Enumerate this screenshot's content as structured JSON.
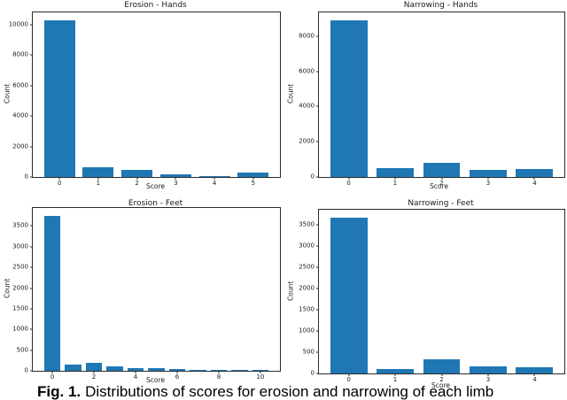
{
  "figure": {
    "caption_prefix": "Fig. 1.",
    "caption_text": "Distributions of scores for erosion and narrowing of each limb"
  },
  "chart_data": [
    {
      "type": "bar",
      "title": "Erosion - Hands",
      "xlabel": "Score",
      "ylabel": "Count",
      "categories": [
        "0",
        "1",
        "2",
        "3",
        "4",
        "5"
      ],
      "values": [
        10300,
        630,
        450,
        190,
        80,
        300
      ],
      "yticks": [
        0,
        2000,
        4000,
        6000,
        8000,
        10000
      ],
      "ylim": [
        0,
        10815
      ],
      "xtick_every": 1,
      "bar_color": "#1f77b4",
      "grid": false,
      "legend_position": "none"
    },
    {
      "type": "bar",
      "title": "Narrowing - Hands",
      "xlabel": "Score",
      "ylabel": "Count",
      "categories": [
        "0",
        "1",
        "2",
        "3",
        "4"
      ],
      "values": [
        8900,
        520,
        780,
        390,
        430
      ],
      "yticks": [
        0,
        2000,
        4000,
        6000,
        8000
      ],
      "ylim": [
        0,
        9345
      ],
      "xtick_every": 1,
      "bar_color": "#1f77b4",
      "grid": false,
      "legend_position": "none"
    },
    {
      "type": "bar",
      "title": "Erosion - Feet",
      "xlabel": "Score",
      "ylabel": "Count",
      "categories": [
        "0",
        "1",
        "2",
        "3",
        "4",
        "5",
        "6",
        "7",
        "8",
        "9",
        "10"
      ],
      "values": [
        3750,
        160,
        200,
        110,
        60,
        60,
        35,
        20,
        30,
        15,
        20
      ],
      "yticks": [
        0,
        500,
        1000,
        1500,
        2000,
        2500,
        3000,
        3500
      ],
      "ylim": [
        0,
        3938
      ],
      "xtick_every": 2,
      "bar_color": "#1f77b4",
      "grid": false,
      "legend_position": "none"
    },
    {
      "type": "bar",
      "title": "Narrowing - Feet",
      "xlabel": "Score",
      "ylabel": "Count",
      "categories": [
        "0",
        "1",
        "2",
        "3",
        "4"
      ],
      "values": [
        3680,
        110,
        330,
        175,
        140
      ],
      "yticks": [
        0,
        500,
        1000,
        1500,
        2000,
        2500,
        3000,
        3500
      ],
      "ylim": [
        0,
        3864
      ],
      "xtick_every": 1,
      "bar_color": "#1f77b4",
      "grid": false,
      "legend_position": "none"
    }
  ]
}
